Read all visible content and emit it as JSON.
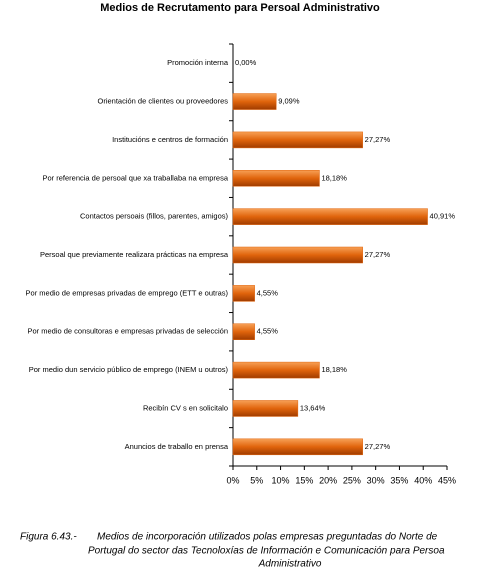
{
  "chart_data": {
    "type": "bar",
    "orientation": "horizontal",
    "title": "Medios de Recrutamento para Persoal Administrativo",
    "categories": [
      "Promoción interna",
      "Orientación de clientes ou proveedores",
      "Institucións e centros de formación",
      "Por referencia de persoal que xa traballaba na empresa",
      "Contactos persoais (fillos, parentes, amigos)",
      "Persoal que previamente realizara prácticas na empresa",
      "Por medio de empresas privadas de emprego (ETT e outras)",
      "Por medio de consultoras e empresas privadas de selección",
      "Por medio dun servicio público de emprego (INEM u outros)",
      "Recibín CV s en solicitalo",
      "Anuncios de traballo en prensa"
    ],
    "values": [
      0,
      9.09,
      27.27,
      18.18,
      40.91,
      27.27,
      4.55,
      4.55,
      18.18,
      13.64,
      27.27
    ],
    "value_labels": [
      "0,00%",
      "9,09%",
      "27,27%",
      "18,18%",
      "40,91%",
      "27,27%",
      "4,55%",
      "4,55%",
      "18,18%",
      "13,64%",
      "27,27%"
    ],
    "color": "#e0640c",
    "xlim": [
      0,
      45
    ],
    "xticks": [
      {
        "value": 0,
        "label": "0%"
      },
      {
        "value": 5,
        "label": "5%"
      },
      {
        "value": 10,
        "label": "10%"
      },
      {
        "value": 15,
        "label": "15%"
      },
      {
        "value": 20,
        "label": "20%"
      },
      {
        "value": 25,
        "label": "25%"
      },
      {
        "value": 30,
        "label": "30%"
      },
      {
        "value": 35,
        "label": "35%"
      },
      {
        "value": 40,
        "label": "40%"
      },
      {
        "value": 45,
        "label": "45%"
      }
    ],
    "grid": false
  },
  "caption": {
    "label": "Figura 6.43.-",
    "lines": [
      "Medios de incorporación utilizados polas empresas preguntadas do Norte de",
      "Portugal do sector das Tecnoloxías de Información e Comunicación para Persoa",
      "Administrativo"
    ]
  }
}
